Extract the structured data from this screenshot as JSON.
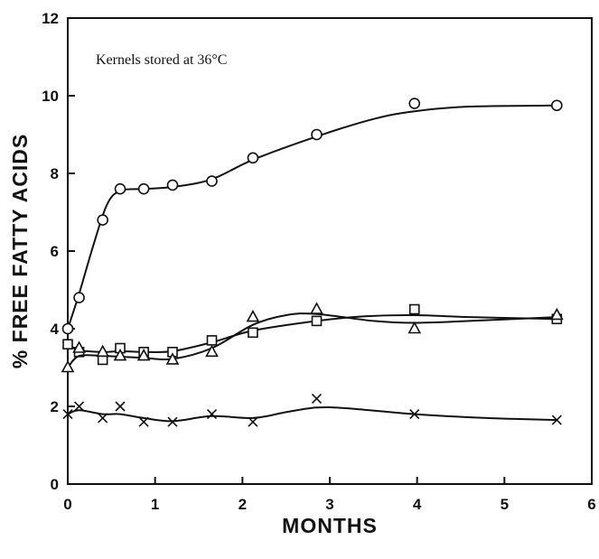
{
  "chart_data": {
    "type": "line",
    "title": "",
    "annotation": "Kernels stored at 36°C",
    "xlabel": "MONTHS",
    "ylabel": "% FREE FATTY ACIDS",
    "xlim": [
      0,
      6
    ],
    "ylim": [
      0,
      12
    ],
    "xticks": [
      0,
      1,
      2,
      3,
      4,
      5,
      6
    ],
    "yticks": [
      0,
      2,
      4,
      6,
      8,
      10,
      12
    ],
    "grid": false,
    "series": [
      {
        "marker": "circle",
        "points": [
          [
            0,
            4.0
          ],
          [
            0.13,
            4.8
          ],
          [
            0.4,
            6.8
          ],
          [
            0.6,
            7.6
          ],
          [
            0.87,
            7.6
          ],
          [
            1.2,
            7.7
          ],
          [
            1.65,
            7.8
          ],
          [
            2.12,
            8.4
          ],
          [
            2.85,
            9.0
          ],
          [
            3.97,
            9.8
          ],
          [
            5.6,
            9.75
          ]
        ],
        "curve": [
          [
            0,
            4.0
          ],
          [
            0.13,
            4.9
          ],
          [
            0.3,
            6.2
          ],
          [
            0.45,
            7.2
          ],
          [
            0.6,
            7.55
          ],
          [
            0.87,
            7.6
          ],
          [
            1.2,
            7.65
          ],
          [
            1.65,
            7.85
          ],
          [
            2.12,
            8.35
          ],
          [
            2.85,
            8.95
          ],
          [
            3.5,
            9.4
          ],
          [
            3.97,
            9.6
          ],
          [
            4.6,
            9.72
          ],
          [
            5.6,
            9.75
          ]
        ]
      },
      {
        "marker": "square",
        "points": [
          [
            0,
            3.6
          ],
          [
            0.13,
            3.4
          ],
          [
            0.4,
            3.2
          ],
          [
            0.6,
            3.5
          ],
          [
            0.87,
            3.4
          ],
          [
            1.2,
            3.4
          ],
          [
            1.65,
            3.7
          ],
          [
            2.12,
            3.9
          ],
          [
            2.85,
            4.2
          ],
          [
            3.97,
            4.5
          ],
          [
            5.6,
            4.25
          ]
        ],
        "curve": [
          [
            0,
            3.6
          ],
          [
            0.13,
            3.45
          ],
          [
            0.4,
            3.4
          ],
          [
            0.6,
            3.42
          ],
          [
            0.87,
            3.4
          ],
          [
            1.2,
            3.42
          ],
          [
            1.65,
            3.65
          ],
          [
            2.12,
            3.95
          ],
          [
            2.85,
            4.2
          ],
          [
            3.4,
            4.32
          ],
          [
            3.97,
            4.35
          ],
          [
            4.6,
            4.3
          ],
          [
            5.6,
            4.25
          ]
        ]
      },
      {
        "marker": "triangle",
        "points": [
          [
            0,
            3.0
          ],
          [
            0.13,
            3.5
          ],
          [
            0.4,
            3.4
          ],
          [
            0.6,
            3.3
          ],
          [
            0.87,
            3.3
          ],
          [
            1.2,
            3.2
          ],
          [
            1.65,
            3.4
          ],
          [
            2.12,
            4.3
          ],
          [
            2.85,
            4.5
          ],
          [
            3.97,
            4.0
          ],
          [
            5.6,
            4.35
          ]
        ],
        "curve": [
          [
            0,
            3.0
          ],
          [
            0.13,
            3.3
          ],
          [
            0.4,
            3.3
          ],
          [
            0.6,
            3.28
          ],
          [
            0.87,
            3.25
          ],
          [
            1.2,
            3.22
          ],
          [
            1.65,
            3.5
          ],
          [
            2.12,
            4.1
          ],
          [
            2.5,
            4.35
          ],
          [
            2.85,
            4.38
          ],
          [
            3.5,
            4.2
          ],
          [
            3.97,
            4.15
          ],
          [
            4.6,
            4.2
          ],
          [
            5.6,
            4.3
          ]
        ]
      },
      {
        "marker": "x",
        "points": [
          [
            0,
            1.8
          ],
          [
            0.13,
            2.0
          ],
          [
            0.4,
            1.7
          ],
          [
            0.6,
            2.0
          ],
          [
            0.87,
            1.6
          ],
          [
            1.2,
            1.6
          ],
          [
            1.65,
            1.8
          ],
          [
            2.12,
            1.6
          ],
          [
            2.85,
            2.2
          ],
          [
            3.97,
            1.8
          ],
          [
            5.6,
            1.65
          ]
        ],
        "curve": [
          [
            0,
            1.8
          ],
          [
            0.13,
            1.9
          ],
          [
            0.4,
            1.8
          ],
          [
            0.6,
            1.8
          ],
          [
            0.87,
            1.7
          ],
          [
            1.2,
            1.62
          ],
          [
            1.65,
            1.75
          ],
          [
            2.12,
            1.7
          ],
          [
            2.5,
            1.85
          ],
          [
            2.85,
            1.97
          ],
          [
            3.2,
            1.95
          ],
          [
            3.97,
            1.8
          ],
          [
            4.8,
            1.7
          ],
          [
            5.6,
            1.65
          ]
        ]
      }
    ]
  }
}
